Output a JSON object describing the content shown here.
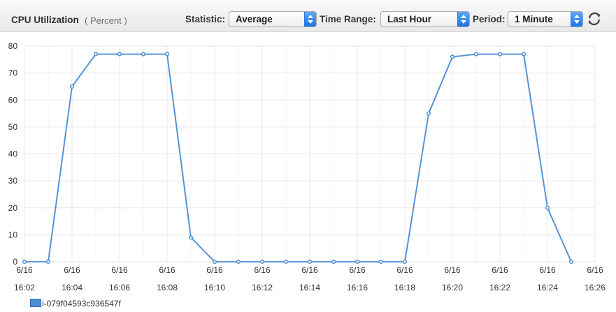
{
  "header": {
    "title": "CPU Utilization",
    "unit": "( Percent )",
    "controls": {
      "statistic_label": "Statistic:",
      "statistic_value": "Average",
      "time_range_label": "Time Range:",
      "time_range_value": "Last Hour",
      "period_label": "Period:",
      "period_value": "1 Minute"
    },
    "refresh_icon": "refresh-icon"
  },
  "legend": {
    "items": [
      {
        "name": "i-079f04593c936547f",
        "color": "#4b8ed6"
      }
    ]
  },
  "chart_data": {
    "type": "line",
    "title": "CPU Utilization",
    "subtitle": "( Percent )",
    "xlabel": "",
    "ylabel": "",
    "ylim": [
      0,
      80
    ],
    "y_ticks": [
      0,
      10,
      20,
      30,
      40,
      50,
      60,
      70,
      80
    ],
    "x_ticks": [
      {
        "date": "6/16",
        "time": "16:02"
      },
      {
        "date": "6/16",
        "time": "16:04"
      },
      {
        "date": "6/16",
        "time": "16:06"
      },
      {
        "date": "6/16",
        "time": "16:08"
      },
      {
        "date": "6/16",
        "time": "16:10"
      },
      {
        "date": "6/16",
        "time": "16:12"
      },
      {
        "date": "6/16",
        "time": "16:14"
      },
      {
        "date": "6/16",
        "time": "16:16"
      },
      {
        "date": "6/16",
        "time": "16:18"
      },
      {
        "date": "6/16",
        "time": "16:20"
      },
      {
        "date": "6/16",
        "time": "16:22"
      },
      {
        "date": "6/16",
        "time": "16:24"
      },
      {
        "date": "6/16",
        "time": "16:26"
      }
    ],
    "xlim": [
      "16:02",
      "16:26"
    ],
    "series": [
      {
        "name": "i-079f04593c936547f",
        "color": "#4b8ed6",
        "points": [
          {
            "time": "16:02",
            "value": 0
          },
          {
            "time": "16:03",
            "value": 0
          },
          {
            "time": "16:04",
            "value": 65
          },
          {
            "time": "16:05",
            "value": 77
          },
          {
            "time": "16:06",
            "value": 77
          },
          {
            "time": "16:07",
            "value": 77
          },
          {
            "time": "16:08",
            "value": 77
          },
          {
            "time": "16:09",
            "value": 9
          },
          {
            "time": "16:10",
            "value": 0
          },
          {
            "time": "16:11",
            "value": 0
          },
          {
            "time": "16:12",
            "value": 0
          },
          {
            "time": "16:13",
            "value": 0
          },
          {
            "time": "16:14",
            "value": 0
          },
          {
            "time": "16:15",
            "value": 0
          },
          {
            "time": "16:16",
            "value": 0
          },
          {
            "time": "16:17",
            "value": 0
          },
          {
            "time": "16:18",
            "value": 0
          },
          {
            "time": "16:19",
            "value": 55
          },
          {
            "time": "16:20",
            "value": 76
          },
          {
            "time": "16:21",
            "value": 77
          },
          {
            "time": "16:22",
            "value": 77
          },
          {
            "time": "16:23",
            "value": 77
          },
          {
            "time": "16:24",
            "value": 20
          },
          {
            "time": "16:25",
            "value": 0
          }
        ]
      }
    ],
    "grid": true,
    "legend_position": "bottom-left"
  }
}
